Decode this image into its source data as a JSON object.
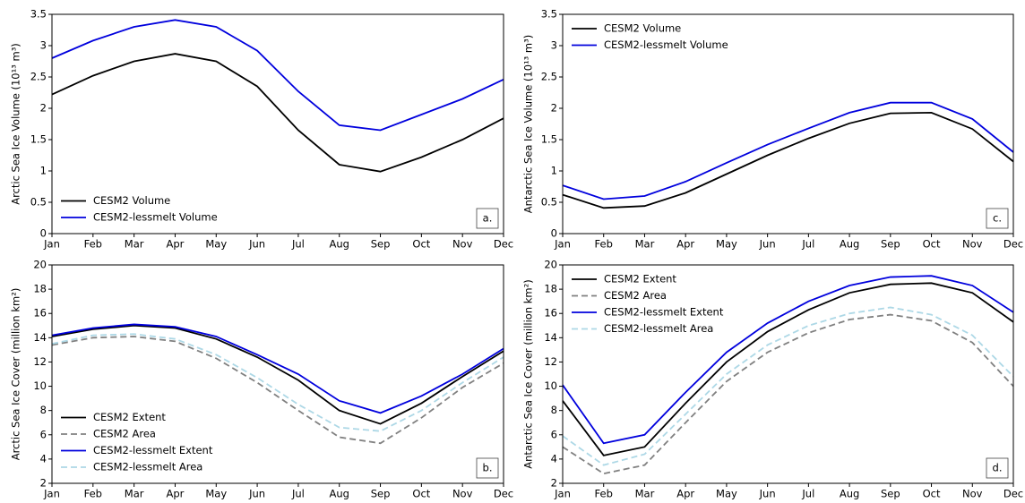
{
  "chart_data": [
    {
      "type": "line",
      "ylabel": "Arctic Sea Ice Volume (10¹³ m³)",
      "panel_label": "a.",
      "categories": [
        "Jan",
        "Feb",
        "Mar",
        "Apr",
        "May",
        "Jun",
        "Jul",
        "Aug",
        "Sep",
        "Oct",
        "Nov",
        "Dec"
      ],
      "ylim": [
        0,
        3.5
      ],
      "yticks": [
        0,
        0.5,
        1,
        1.5,
        2,
        2.5,
        3,
        3.5
      ],
      "legend": "lower left",
      "series": [
        {
          "name": "CESM2 Volume",
          "color": "#000000",
          "linestyle": "solid",
          "values": [
            2.22,
            2.52,
            2.75,
            2.87,
            2.75,
            2.35,
            1.65,
            1.1,
            0.99,
            1.22,
            1.5,
            1.84
          ]
        },
        {
          "name": "CESM2-lessmelt Volume",
          "color": "#0000dd",
          "linestyle": "solid",
          "values": [
            2.8,
            3.08,
            3.3,
            3.41,
            3.3,
            2.92,
            2.27,
            1.73,
            1.65,
            1.9,
            2.15,
            2.46
          ]
        }
      ]
    },
    {
      "type": "line",
      "ylabel": "Antarctic Sea Ice Volume (10¹³ m³)",
      "panel_label": "c.",
      "categories": [
        "Jan",
        "Feb",
        "Mar",
        "Apr",
        "May",
        "Jun",
        "Jul",
        "Aug",
        "Sep",
        "Oct",
        "Nov",
        "Dec"
      ],
      "ylim": [
        0,
        3.5
      ],
      "yticks": [
        0,
        0.5,
        1,
        1.5,
        2,
        2.5,
        3,
        3.5
      ],
      "legend": "upper left",
      "series": [
        {
          "name": "CESM2 Volume",
          "color": "#000000",
          "linestyle": "solid",
          "values": [
            0.62,
            0.41,
            0.44,
            0.65,
            0.95,
            1.25,
            1.52,
            1.76,
            1.92,
            1.93,
            1.67,
            1.15
          ]
        },
        {
          "name": "CESM2-lessmelt Volume",
          "color": "#0000dd",
          "linestyle": "solid",
          "values": [
            0.77,
            0.55,
            0.6,
            0.83,
            1.13,
            1.42,
            1.68,
            1.93,
            2.09,
            2.09,
            1.83,
            1.3
          ]
        }
      ]
    },
    {
      "type": "line",
      "ylabel": "Arctic Sea Ice Cover (million km²)",
      "panel_label": "b.",
      "categories": [
        "Jan",
        "Feb",
        "Mar",
        "Apr",
        "May",
        "Jun",
        "Jul",
        "Aug",
        "Sep",
        "Oct",
        "Nov",
        "Dec"
      ],
      "ylim": [
        2,
        20
      ],
      "yticks": [
        2,
        4,
        6,
        8,
        10,
        12,
        14,
        16,
        18,
        20
      ],
      "legend": "lower left",
      "series": [
        {
          "name": "CESM2 Extent",
          "color": "#000000",
          "linestyle": "solid",
          "values": [
            14.1,
            14.7,
            15.0,
            14.8,
            13.9,
            12.4,
            10.5,
            8.0,
            6.9,
            8.6,
            10.8,
            12.9
          ]
        },
        {
          "name": "CESM2 Area",
          "color": "#808080",
          "linestyle": "dashed",
          "values": [
            13.4,
            14.0,
            14.1,
            13.7,
            12.3,
            10.3,
            8.0,
            5.8,
            5.3,
            7.4,
            9.9,
            11.9
          ]
        },
        {
          "name": "CESM2-lessmelt Extent",
          "color": "#0000dd",
          "linestyle": "solid",
          "values": [
            14.2,
            14.8,
            15.1,
            14.9,
            14.1,
            12.6,
            11.0,
            8.8,
            7.8,
            9.2,
            11.0,
            13.1
          ]
        },
        {
          "name": "CESM2-lessmelt Area",
          "color": "#add8e6",
          "linestyle": "dashed",
          "values": [
            13.5,
            14.2,
            14.3,
            13.9,
            12.6,
            10.7,
            8.5,
            6.6,
            6.3,
            8.0,
            10.3,
            12.4
          ]
        }
      ]
    },
    {
      "type": "line",
      "ylabel": "Antarctic Sea Ice Cover (million km²)",
      "panel_label": "d.",
      "categories": [
        "Jan",
        "Feb",
        "Mar",
        "Apr",
        "May",
        "Jun",
        "Jul",
        "Aug",
        "Sep",
        "Oct",
        "Nov",
        "Dec"
      ],
      "ylim": [
        2,
        20
      ],
      "yticks": [
        2,
        4,
        6,
        8,
        10,
        12,
        14,
        16,
        18,
        20
      ],
      "legend": "upper left",
      "series": [
        {
          "name": "CESM2 Extent",
          "color": "#000000",
          "linestyle": "solid",
          "values": [
            8.8,
            4.3,
            5.0,
            8.6,
            12.0,
            14.5,
            16.3,
            17.7,
            18.4,
            18.5,
            17.7,
            15.3
          ]
        },
        {
          "name": "CESM2 Area",
          "color": "#808080",
          "linestyle": "dashed",
          "values": [
            5.0,
            2.8,
            3.5,
            7.0,
            10.4,
            12.8,
            14.4,
            15.5,
            15.9,
            15.4,
            13.6,
            10.0
          ]
        },
        {
          "name": "CESM2-lessmelt Extent",
          "color": "#0000dd",
          "linestyle": "solid",
          "values": [
            10.1,
            5.3,
            6.0,
            9.5,
            12.8,
            15.2,
            17.0,
            18.3,
            19.0,
            19.1,
            18.3,
            16.1
          ]
        },
        {
          "name": "CESM2-lessmelt Area",
          "color": "#add8e6",
          "linestyle": "dashed",
          "values": [
            5.9,
            3.5,
            4.4,
            7.7,
            11.0,
            13.4,
            15.0,
            16.0,
            16.5,
            15.9,
            14.2,
            10.8
          ]
        }
      ]
    }
  ]
}
